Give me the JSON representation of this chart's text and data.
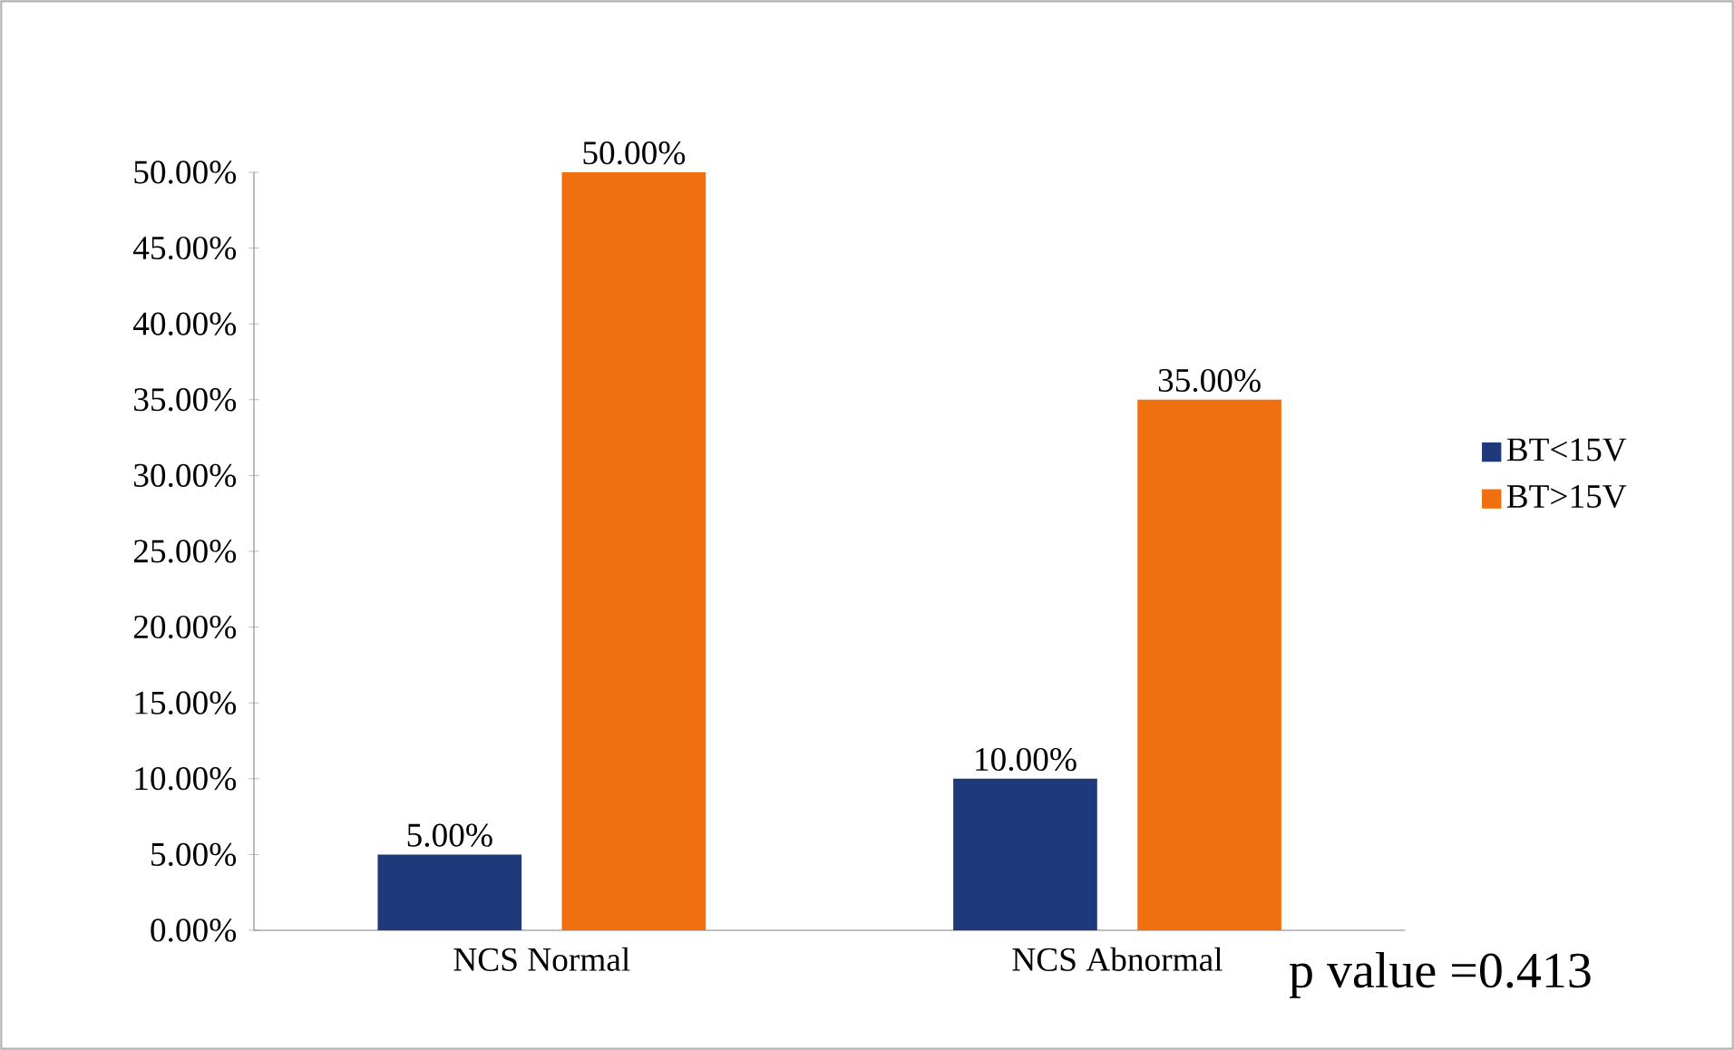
{
  "chart_data": {
    "type": "bar",
    "categories": [
      "NCS Normal",
      "NCS Abnormal"
    ],
    "series": [
      {
        "name": "BT<15V",
        "color": "#1f3a7a",
        "values": [
          5,
          10
        ],
        "value_labels": [
          "5.00%",
          "10.00%"
        ]
      },
      {
        "name": "BT>15V",
        "color": "#f07010",
        "values": [
          50,
          35
        ],
        "value_labels": [
          "50.00%",
          "35.00%"
        ]
      }
    ],
    "ylim": [
      0,
      50
    ],
    "yticks": [
      {
        "value": 0,
        "label": "0.00%"
      },
      {
        "value": 5,
        "label": "5.00%"
      },
      {
        "value": 10,
        "label": "10.00%"
      },
      {
        "value": 15,
        "label": "15.00%"
      },
      {
        "value": 20,
        "label": "20.00%"
      },
      {
        "value": 25,
        "label": "25.00%"
      },
      {
        "value": 30,
        "label": "30.00%"
      },
      {
        "value": 35,
        "label": "35.00%"
      },
      {
        "value": 40,
        "label": "40.00%"
      },
      {
        "value": 45,
        "label": "45.00%"
      },
      {
        "value": 50,
        "label": "50.00%"
      }
    ],
    "legend": "right",
    "annotations": [
      "p value =0.413"
    ]
  }
}
